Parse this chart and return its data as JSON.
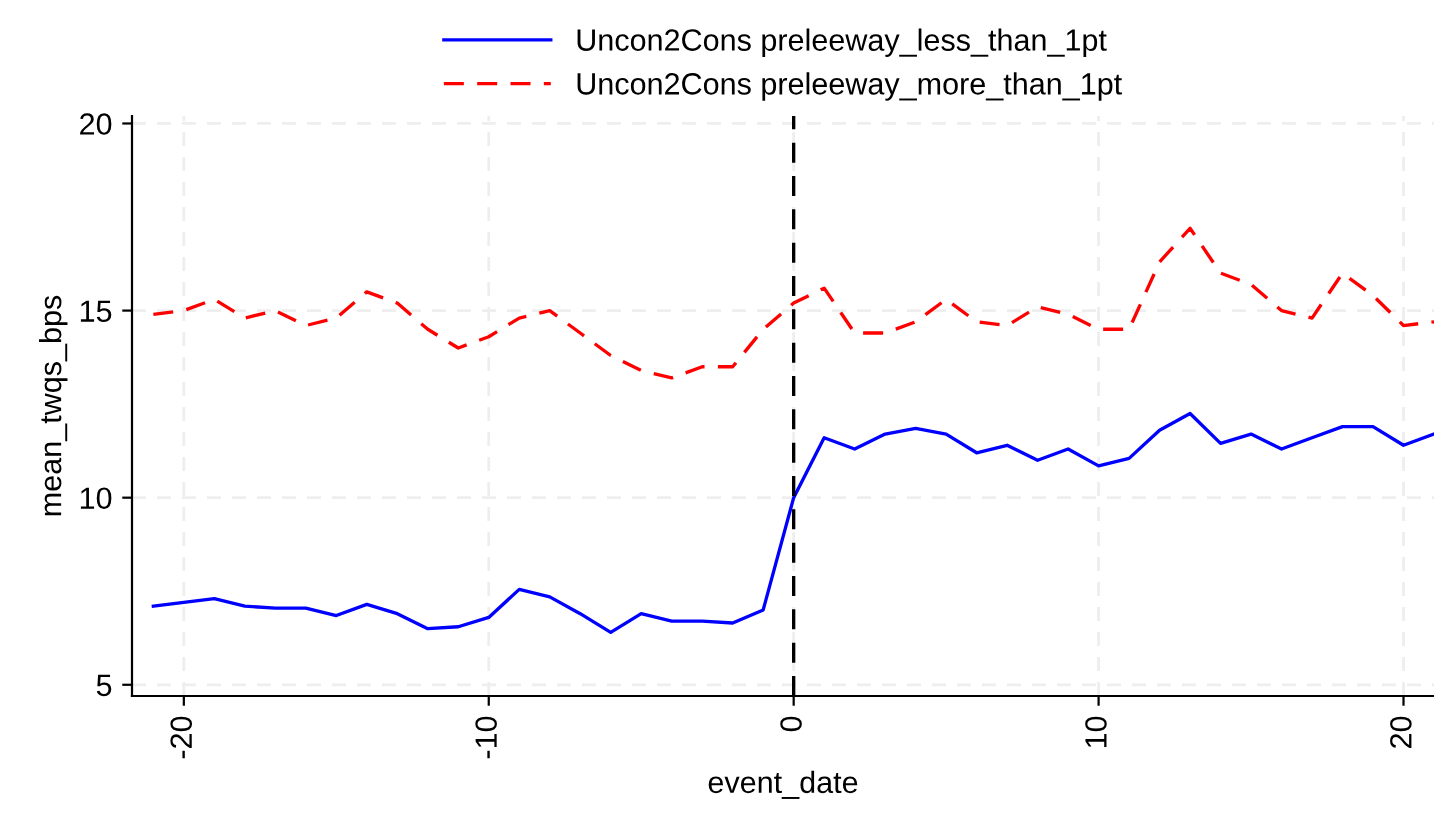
{
  "chart_data": {
    "type": "line",
    "xlabel": "event_date",
    "ylabel": "mean_twqs_bps",
    "x": [
      -21,
      -20,
      -19,
      -18,
      -17,
      -16,
      -15,
      -14,
      -13,
      -12,
      -11,
      -10,
      -9,
      -8,
      -7,
      -6,
      -5,
      -4,
      -3,
      -2,
      -1,
      0,
      1,
      2,
      3,
      4,
      5,
      6,
      7,
      8,
      9,
      10,
      11,
      12,
      13,
      14,
      15,
      16,
      17,
      18,
      19,
      20,
      21
    ],
    "series": [
      {
        "name": "Uncon2Cons preleeway_less_than_1pt",
        "color": "#0000ff",
        "line_style": "solid",
        "values": [
          7.1,
          7.2,
          7.3,
          7.1,
          7.05,
          7.05,
          6.85,
          7.15,
          6.9,
          6.5,
          6.55,
          6.8,
          7.55,
          7.35,
          6.9,
          6.4,
          6.9,
          6.7,
          6.7,
          6.65,
          7.0,
          10.0,
          11.6,
          11.3,
          11.7,
          11.85,
          11.7,
          11.2,
          11.4,
          11.0,
          11.3,
          10.85,
          11.05,
          11.8,
          12.25,
          11.45,
          11.7,
          11.3,
          11.6,
          11.9,
          11.9,
          11.4,
          11.7
        ]
      },
      {
        "name": "Uncon2Cons preleeway_more_than_1pt",
        "color": "#ff0000",
        "line_style": "dashed",
        "values": [
          14.9,
          15.0,
          15.3,
          14.8,
          15.0,
          14.6,
          14.8,
          15.5,
          15.2,
          14.5,
          14.0,
          14.3,
          14.8,
          15.0,
          14.4,
          13.8,
          13.4,
          13.2,
          13.5,
          13.5,
          14.5,
          15.2,
          15.6,
          14.4,
          14.4,
          14.7,
          15.3,
          14.7,
          14.6,
          15.1,
          14.9,
          14.5,
          14.5,
          16.3,
          17.2,
          16.0,
          15.7,
          15.0,
          14.8,
          16.0,
          15.4,
          14.6,
          14.7
        ]
      }
    ],
    "xlim": [
      -21.7,
      21
    ],
    "xticks": [
      -20,
      -10,
      0,
      10,
      20
    ],
    "ylim": [
      4.7,
      20.2
    ],
    "yticks": [
      5,
      10,
      15,
      20
    ],
    "ref_lines": [
      {
        "axis": "x",
        "value": 0,
        "color": "#000000",
        "line_style": "dashed"
      }
    ],
    "grid": true,
    "legend": "top"
  }
}
